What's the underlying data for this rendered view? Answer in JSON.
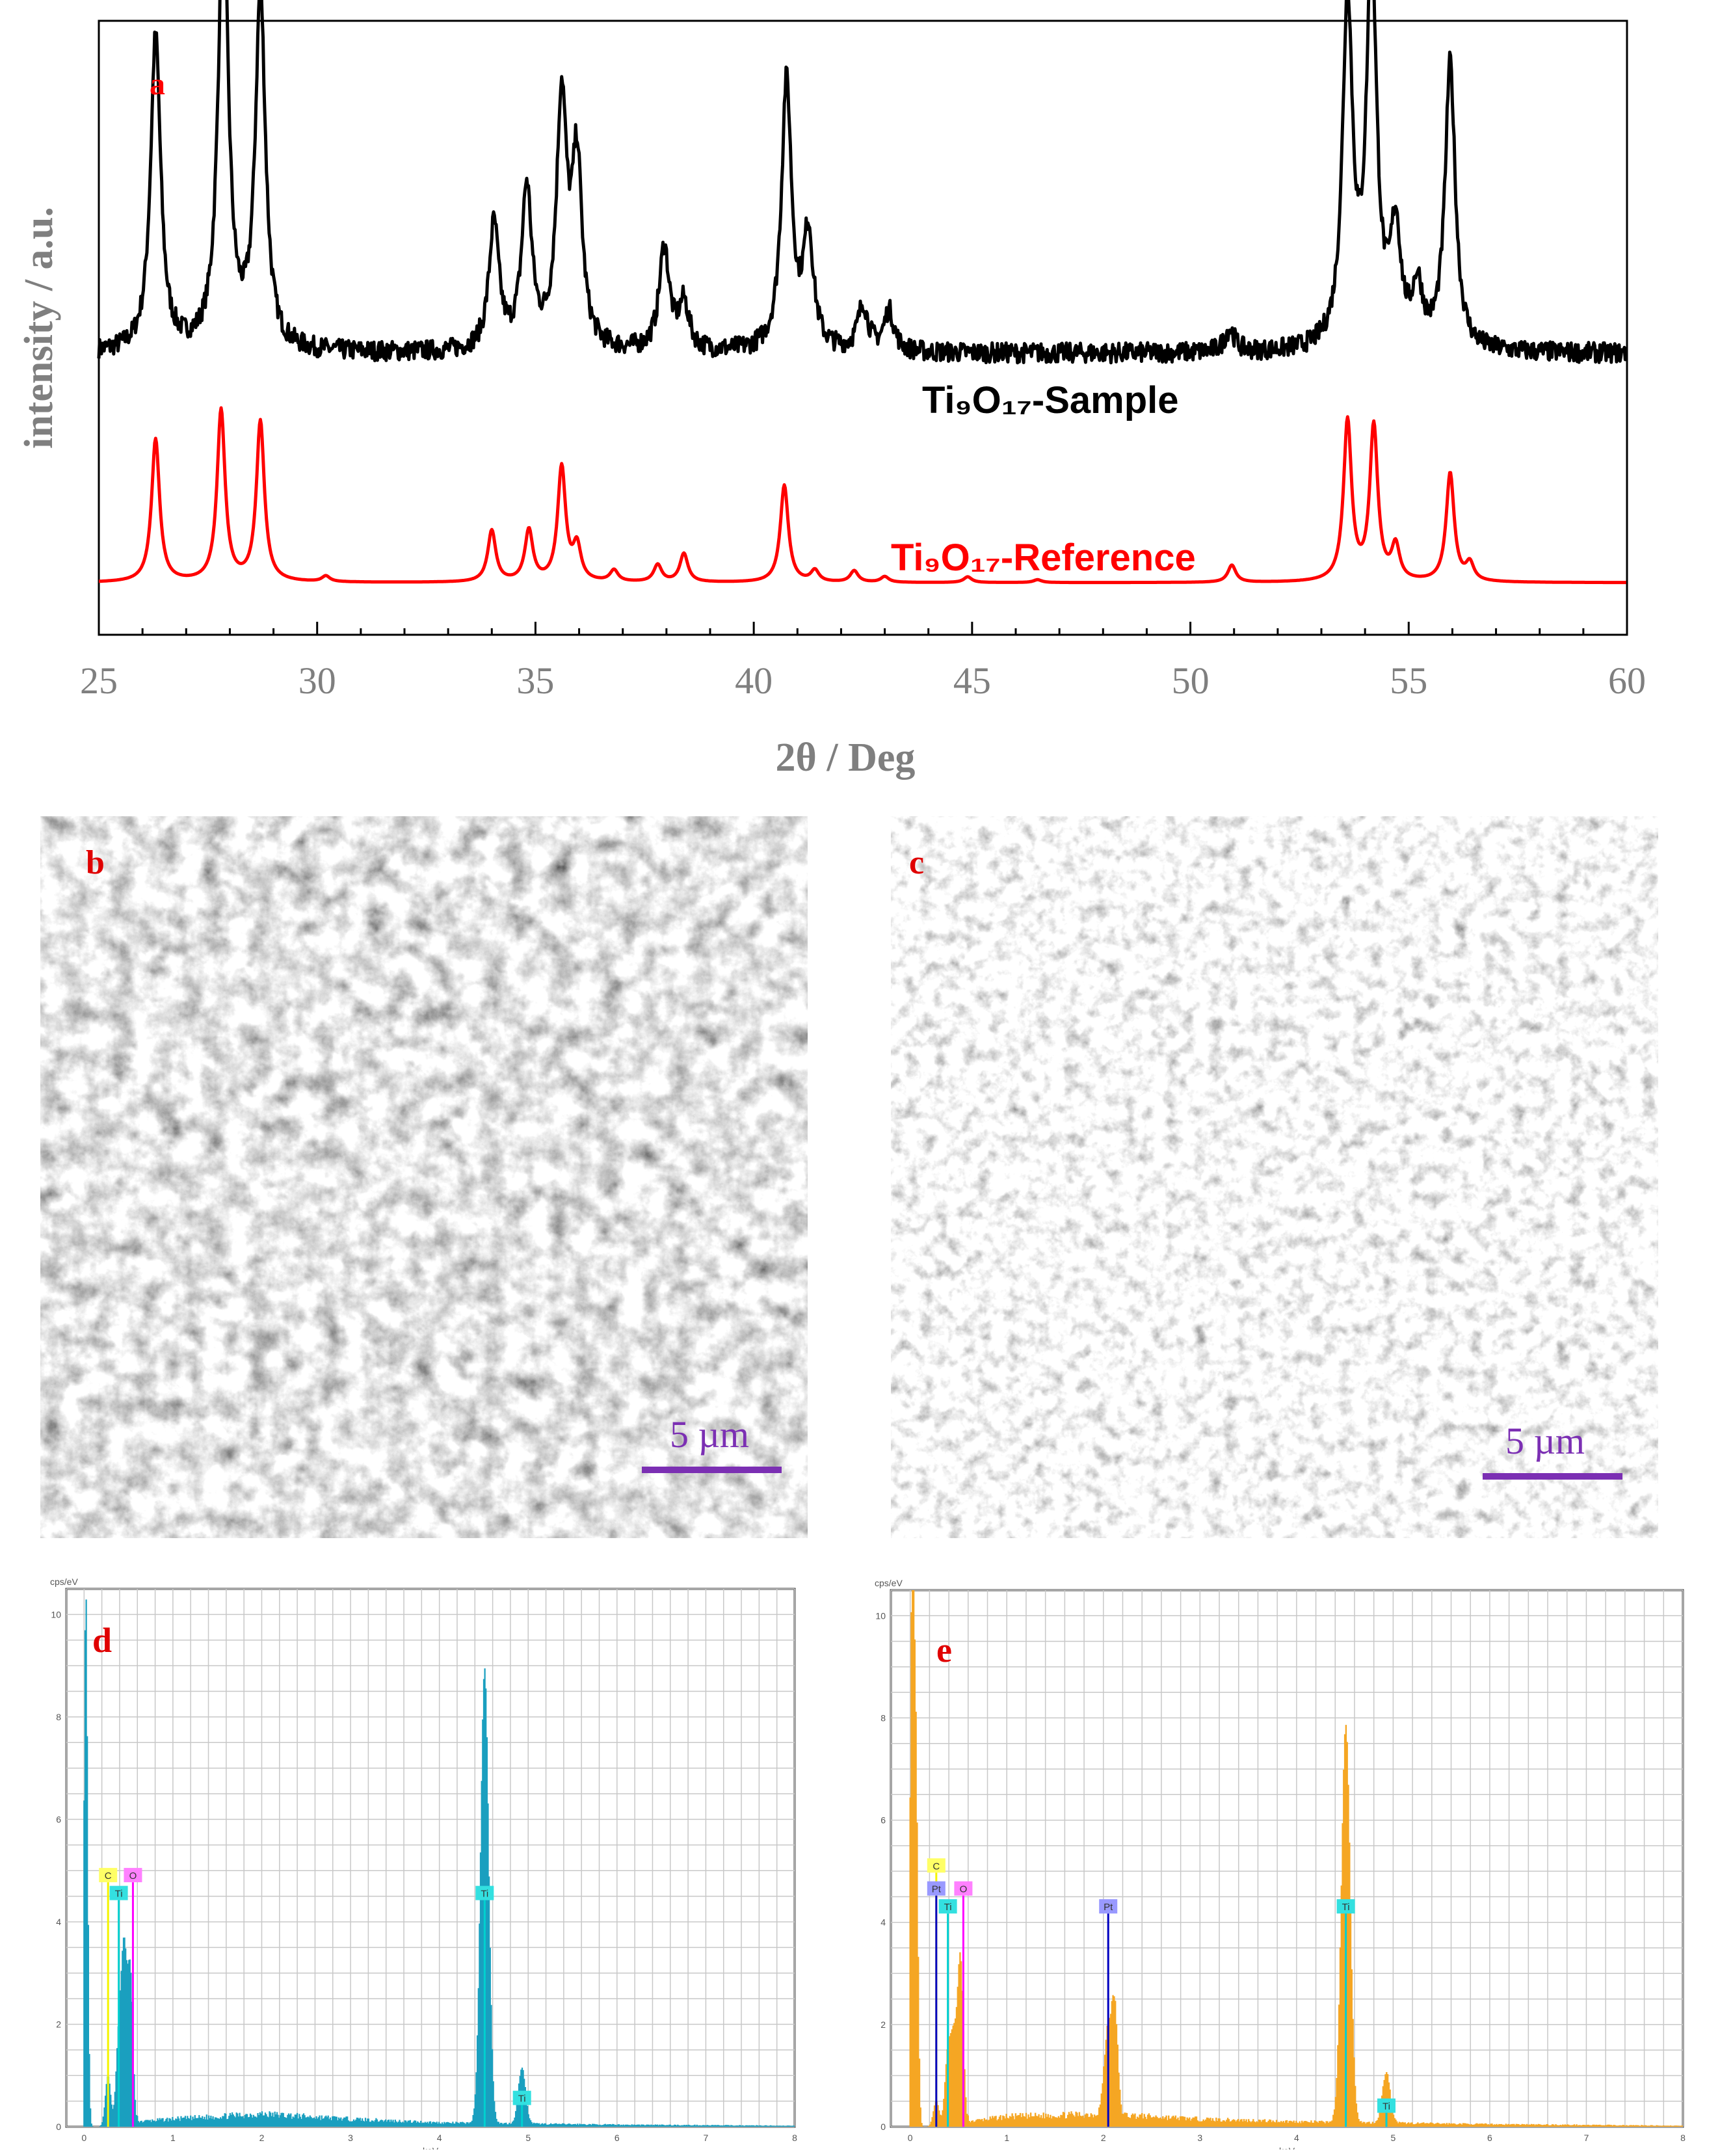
{
  "panels": {
    "a": "a",
    "b": "b",
    "c": "c",
    "d": "d",
    "e": "e"
  },
  "chart_data": [
    {
      "type": "line",
      "panel": "a",
      "xlabel": "2θ / Deg",
      "ylabel": "intensity / a.u.",
      "xlim": [
        25,
        60
      ],
      "xticks": [
        25,
        30,
        35,
        40,
        45,
        50,
        55,
        60
      ],
      "series": [
        {
          "name": "Ti₉O₁₇-Sample",
          "color": "#000000",
          "baseline": 0.45,
          "peaks": [
            [
              26.3,
              0.55
            ],
            [
              27.85,
              0.78
            ],
            [
              28.7,
              0.62
            ],
            [
              34.05,
              0.22
            ],
            [
              34.8,
              0.28
            ],
            [
              35.6,
              0.43
            ],
            [
              35.95,
              0.32
            ],
            [
              37.95,
              0.18
            ],
            [
              38.4,
              0.08
            ],
            [
              40.75,
              0.47
            ],
            [
              41.25,
              0.2
            ],
            [
              42.5,
              0.08
            ],
            [
              43.1,
              0.07
            ],
            [
              50.9,
              0.04
            ],
            [
              53.6,
              0.6
            ],
            [
              54.15,
              0.68
            ],
            [
              54.7,
              0.2
            ],
            [
              55.2,
              0.1
            ],
            [
              55.95,
              0.5
            ]
          ]
        },
        {
          "name": "Ti₉O₁₇-Reference",
          "color": "#ff0000",
          "baseline": 0.05,
          "peaks": [
            [
              26.3,
              0.25
            ],
            [
              27.8,
              0.3
            ],
            [
              28.7,
              0.28
            ],
            [
              30.2,
              0.01
            ],
            [
              34.0,
              0.09
            ],
            [
              34.85,
              0.09
            ],
            [
              35.6,
              0.2
            ],
            [
              35.95,
              0.06
            ],
            [
              36.8,
              0.02
            ],
            [
              37.8,
              0.03
            ],
            [
              38.4,
              0.05
            ],
            [
              40.7,
              0.17
            ],
            [
              41.4,
              0.02
            ],
            [
              42.3,
              0.02
            ],
            [
              43.0,
              0.01
            ],
            [
              44.9,
              0.01
            ],
            [
              46.5,
              0.005
            ],
            [
              50.95,
              0.03
            ],
            [
              53.6,
              0.28
            ],
            [
              54.2,
              0.27
            ],
            [
              54.7,
              0.06
            ],
            [
              55.95,
              0.19
            ],
            [
              56.4,
              0.03
            ]
          ]
        }
      ]
    },
    {
      "type": "bar",
      "panel": "d",
      "title": "cps/eV",
      "xlabel": "keV",
      "ylabel": "cps/eV",
      "xlim": [
        -0.2,
        8
      ],
      "xticks": [
        0,
        1,
        2,
        3,
        4,
        5,
        6,
        7,
        8
      ],
      "ylim": [
        0,
        10.5
      ],
      "yticks": [
        0,
        2,
        4,
        6,
        8,
        10
      ],
      "color": "#1a9fbf",
      "peaks": [
        [
          0.02,
          10.5,
          0.02
        ],
        [
          0.27,
          1.0,
          0.03
        ],
        [
          0.39,
          1.7,
          0.03
        ],
        [
          0.45,
          3.3,
          0.03
        ],
        [
          0.52,
          3.0,
          0.03
        ],
        [
          4.51,
          8.9,
          0.045
        ],
        [
          4.93,
          1.1,
          0.04
        ]
      ],
      "continuum": [
        [
          0.6,
          0.1
        ],
        [
          1.0,
          0.15
        ],
        [
          2.0,
          0.25
        ],
        [
          3.0,
          0.15
        ],
        [
          4.0,
          0.08
        ],
        [
          6.0,
          0.04
        ],
        [
          8.0,
          0.02
        ]
      ],
      "labels": [
        {
          "text": "C",
          "x": 0.27,
          "y": 4.9,
          "color": "#ffff66",
          "line": "#f4f400"
        },
        {
          "text": "O",
          "x": 0.55,
          "y": 4.9,
          "color": "#ff80ff",
          "line": "#ff00ff"
        },
        {
          "text": "Ti",
          "x": 0.39,
          "y": 4.55,
          "color": "#33e0e0",
          "line": "#00d0d0"
        },
        {
          "text": "Ti",
          "x": 4.51,
          "y": 4.55,
          "color": "#33e0e0",
          "line": "#00d0d0"
        },
        {
          "text": "Ti",
          "x": 4.93,
          "y": 0.55,
          "color": "#33e0e0",
          "line": "#00d0d0"
        }
      ]
    },
    {
      "type": "bar",
      "panel": "e",
      "title": "cps/eV",
      "xlabel": "keV",
      "ylabel": "cps/eV",
      "xlim": [
        -0.2,
        8
      ],
      "xticks": [
        0,
        1,
        2,
        3,
        4,
        5,
        6,
        7,
        8
      ],
      "ylim": [
        0,
        10.5
      ],
      "yticks": [
        0,
        2,
        4,
        6,
        8,
        10
      ],
      "color": "#f5a623",
      "peaks": [
        [
          0.02,
          10.5,
          0.02
        ],
        [
          0.06,
          6.7,
          0.02
        ],
        [
          0.27,
          0.5,
          0.03
        ],
        [
          0.39,
          1.4,
          0.03
        ],
        [
          0.45,
          1.6,
          0.03
        ],
        [
          0.52,
          3.3,
          0.03
        ],
        [
          2.05,
          1.7,
          0.04
        ],
        [
          2.12,
          1.9,
          0.03
        ],
        [
          4.51,
          7.8,
          0.045
        ],
        [
          4.93,
          1.0,
          0.04
        ]
      ],
      "continuum": [
        [
          0.6,
          0.1
        ],
        [
          1.0,
          0.2
        ],
        [
          2.0,
          0.25
        ],
        [
          3.0,
          0.15
        ],
        [
          4.0,
          0.1
        ],
        [
          6.0,
          0.05
        ],
        [
          8.0,
          0.02
        ]
      ],
      "labels": [
        {
          "text": "C",
          "x": 0.27,
          "y": 5.1,
          "color": "#ffff66",
          "line": "#f4f400"
        },
        {
          "text": "Pt",
          "x": 0.27,
          "y": 4.65,
          "color": "#9999ff",
          "line": "#0000c0"
        },
        {
          "text": "O",
          "x": 0.55,
          "y": 4.65,
          "color": "#ff80ff",
          "line": "#ff00ff"
        },
        {
          "text": "Ti",
          "x": 0.39,
          "y": 4.3,
          "color": "#33e0e0",
          "line": "#00d0d0"
        },
        {
          "text": "Pt",
          "x": 2.05,
          "y": 4.3,
          "color": "#9999ff",
          "line": "#0000c0"
        },
        {
          "text": "Ti",
          "x": 4.51,
          "y": 4.3,
          "color": "#33e0e0",
          "line": "#00d0d0"
        },
        {
          "text": "Ti",
          "x": 4.93,
          "y": 0.4,
          "color": "#33e0e0",
          "line": "#00d0d0"
        }
      ]
    }
  ],
  "sem": {
    "b": {
      "label": "b",
      "scale": "5 µm"
    },
    "c": {
      "label": "c",
      "scale": "5 µm"
    }
  }
}
